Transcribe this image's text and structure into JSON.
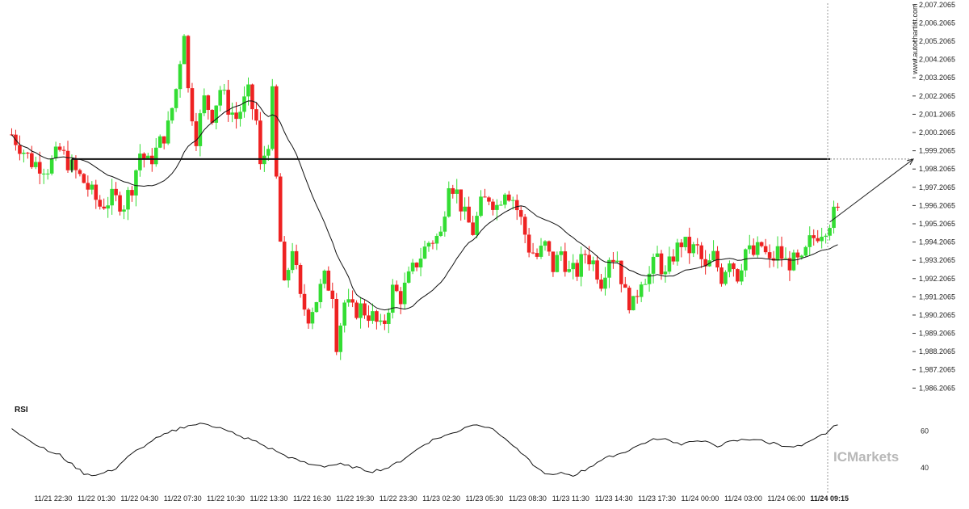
{
  "chart_data": {
    "type": "candlestick",
    "watermark": "www.autochartist.com",
    "broker_logo": "ICMarkets",
    "colors": {
      "up": "#33dd33",
      "down": "#ee2222",
      "line": "#000000",
      "background": "#ffffff"
    },
    "y_ticks": [
      2007.2065,
      2006.2065,
      2005.2065,
      2004.2065,
      2003.2065,
      2002.2065,
      2001.2065,
      2000.2065,
      1999.2065,
      1998.2065,
      1997.2065,
      1996.2065,
      1995.2065,
      1994.2065,
      1993.2065,
      1992.2065,
      1991.2065,
      1990.2065,
      1989.2065,
      1988.2065,
      1987.2065,
      1986.2065
    ],
    "y_tick_labels": [
      "2,007.2065",
      "2,006.2065",
      "2,005.2065",
      "2,004.2065",
      "2,003.2065",
      "2,002.2065",
      "2,001.2065",
      "2,000.2065",
      "1,999.2065",
      "1,998.2065",
      "1,997.2065",
      "1,996.2065",
      "1,995.2065",
      "1,994.2065",
      "1,993.2065",
      "1,992.2065",
      "1,991.2065",
      "1,990.2065",
      "1,989.2065",
      "1,988.2065",
      "1,987.2065",
      "1,986.2065"
    ],
    "x_labels": [
      "11/21 22:30",
      "11/22 01:30",
      "11/22 04:30",
      "11/22 07:30",
      "11/22 10:30",
      "11/22 13:30",
      "11/22 16:30",
      "11/22 19:30",
      "11/22 23:30",
      "11/23 02:30",
      "11/23 05:30",
      "11/23 08:30",
      "11/23 11:30",
      "11/23 14:30",
      "11/23 17:30",
      "11/24 00:00",
      "11/24 03:00",
      "11/24 06:00",
      "11/24 09:15"
    ],
    "ylim": [
      1986.0,
      2007.2
    ],
    "resistance_level": 1998.75,
    "projection": {
      "from": 1995.3,
      "to": 1998.75
    },
    "price_path": [
      [
        0,
        2000.1
      ],
      [
        5,
        1998.6
      ],
      [
        9,
        1998.3
      ],
      [
        12,
        1999.2
      ],
      [
        15,
        1998.3
      ],
      [
        18,
        1997.5
      ],
      [
        22,
        1996.2
      ],
      [
        25,
        1996.6
      ],
      [
        28,
        1996.3
      ],
      [
        30,
        1997.3
      ],
      [
        32,
        1999.1
      ],
      [
        34,
        1998.5
      ],
      [
        36,
        1999.2
      ],
      [
        39,
        2000.5
      ],
      [
        41,
        2002.6
      ],
      [
        43,
        2005.9
      ],
      [
        44,
        2002.5
      ],
      [
        46,
        2000.0
      ],
      [
        48,
        2002.0
      ],
      [
        50,
        2001.2
      ],
      [
        52,
        2002.6
      ],
      [
        54,
        2001.6
      ],
      [
        56,
        2001.0
      ],
      [
        59,
        2002.3
      ],
      [
        61,
        2000.8
      ],
      [
        62,
        1998.2
      ],
      [
        64,
        1999.8
      ],
      [
        65,
        2002.2
      ],
      [
        66,
        1997.6
      ],
      [
        67,
        1994.2
      ],
      [
        68,
        1991.6
      ],
      [
        70,
        1994.0
      ],
      [
        72,
        1991.0
      ],
      [
        74,
        1990.2
      ],
      [
        76,
        1991.1
      ],
      [
        78,
        1992.2
      ],
      [
        80,
        1991.5
      ],
      [
        81,
        1988.7
      ],
      [
        83,
        1990.9
      ],
      [
        85,
        1990.4
      ],
      [
        87,
        1990.6
      ],
      [
        90,
        1990.1
      ],
      [
        92,
        1989.4
      ],
      [
        93,
        1989.9
      ],
      [
        95,
        1991.6
      ],
      [
        97,
        1991.2
      ],
      [
        99,
        1992.2
      ],
      [
        101,
        1993.1
      ],
      [
        104,
        1994.2
      ],
      [
        107,
        1994.6
      ],
      [
        109,
        1997.7
      ],
      [
        111,
        1996.9
      ],
      [
        113,
        1995.6
      ],
      [
        115,
        1994.8
      ],
      [
        117,
        1996.2
      ],
      [
        119,
        1996.7
      ],
      [
        121,
        1996.2
      ],
      [
        123,
        1997.2
      ],
      [
        125,
        1996.6
      ],
      [
        127,
        1995.4
      ],
      [
        129,
        1993.9
      ],
      [
        131,
        1993.4
      ],
      [
        133,
        1994.0
      ],
      [
        135,
        1992.8
      ],
      [
        137,
        1993.7
      ],
      [
        139,
        1992.5
      ],
      [
        141,
        1992.6
      ],
      [
        143,
        1993.6
      ],
      [
        145,
        1993.1
      ],
      [
        147,
        1992.1
      ],
      [
        149,
        1993.5
      ],
      [
        151,
        1993.3
      ],
      [
        153,
        1991.3
      ],
      [
        155,
        1990.7
      ],
      [
        157,
        1992.3
      ],
      [
        159,
        1992.4
      ],
      [
        161,
        1993.4
      ],
      [
        163,
        1992.3
      ],
      [
        165,
        1993.5
      ],
      [
        167,
        1994.2
      ],
      [
        169,
        1993.8
      ],
      [
        171,
        1993.8
      ],
      [
        173,
        1992.6
      ],
      [
        175,
        1993.4
      ],
      [
        177,
        1992.3
      ],
      [
        179,
        1993.4
      ],
      [
        181,
        1992.4
      ],
      [
        183,
        1993.8
      ],
      [
        185,
        1993.5
      ],
      [
        187,
        1994.0
      ],
      [
        189,
        1993.0
      ],
      [
        191,
        1993.7
      ],
      [
        193,
        1993.1
      ],
      [
        195,
        1993.1
      ],
      [
        197,
        1993.0
      ],
      [
        199,
        1994.2
      ],
      [
        201,
        1994.7
      ],
      [
        203,
        1995.1
      ],
      [
        205,
        1995.7
      ],
      [
        206,
        1995.8
      ]
    ],
    "rsi": {
      "title": "RSI",
      "y_tick_labels": [
        "60",
        "40"
      ],
      "levels": [
        60,
        40
      ],
      "ylim": [
        33,
        66
      ],
      "path": [
        [
          0,
          62
        ],
        [
          3,
          57
        ],
        [
          5,
          54
        ],
        [
          7,
          52
        ],
        [
          9,
          49
        ],
        [
          12,
          47
        ],
        [
          15,
          42
        ],
        [
          18,
          37
        ],
        [
          21,
          36
        ],
        [
          24,
          38
        ],
        [
          26,
          40
        ],
        [
          28,
          44
        ],
        [
          31,
          49
        ],
        [
          33,
          52
        ],
        [
          36,
          56
        ],
        [
          40,
          60
        ],
        [
          44,
          63
        ],
        [
          48,
          64
        ],
        [
          52,
          62
        ],
        [
          56,
          58
        ],
        [
          60,
          55
        ],
        [
          63,
          52
        ],
        [
          66,
          49
        ],
        [
          70,
          45
        ],
        [
          74,
          42
        ],
        [
          78,
          41
        ],
        [
          82,
          42
        ],
        [
          86,
          40
        ],
        [
          90,
          38
        ],
        [
          94,
          40
        ],
        [
          98,
          45
        ],
        [
          101,
          50
        ],
        [
          104,
          54
        ],
        [
          107,
          57
        ],
        [
          110,
          59
        ],
        [
          113,
          62
        ],
        [
          116,
          64
        ],
        [
          119,
          62
        ],
        [
          122,
          58
        ],
        [
          125,
          52
        ],
        [
          128,
          46
        ],
        [
          131,
          40
        ],
        [
          134,
          36
        ],
        [
          137,
          37
        ],
        [
          140,
          36
        ],
        [
          143,
          39
        ],
        [
          146,
          43
        ],
        [
          149,
          46
        ],
        [
          152,
          48
        ],
        [
          155,
          51
        ],
        [
          158,
          54
        ],
        [
          161,
          56
        ],
        [
          164,
          55
        ],
        [
          167,
          53
        ],
        [
          170,
          55
        ],
        [
          173,
          54
        ],
        [
          176,
          52
        ],
        [
          179,
          54
        ],
        [
          182,
          55
        ],
        [
          185,
          56
        ],
        [
          188,
          54
        ],
        [
          191,
          53
        ],
        [
          194,
          51
        ],
        [
          197,
          52
        ],
        [
          200,
          55
        ],
        [
          203,
          59
        ],
        [
          206,
          64
        ]
      ]
    }
  }
}
